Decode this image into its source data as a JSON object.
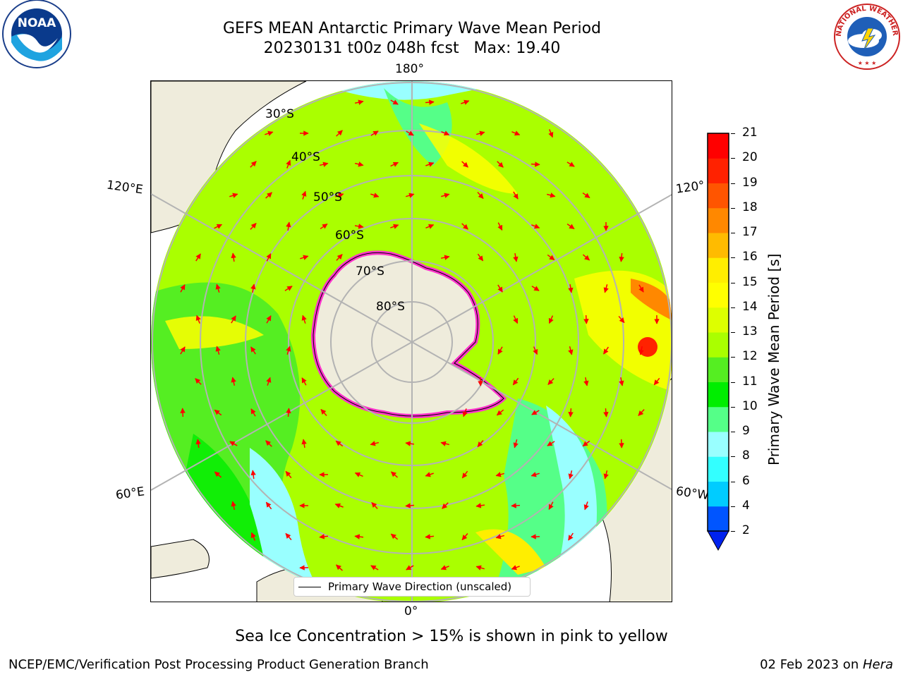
{
  "header": {
    "title_line1": "GEFS MEAN Antarctic Primary Wave Mean Period",
    "title_line2": "20230131 t00z 048h fcst   Max: 19.40"
  },
  "logos": {
    "noaa_text": "NOAA",
    "nws_text": "NATIONAL WEATHER SERVICE"
  },
  "map": {
    "longitude_labels": [
      "180°",
      "120°E",
      "120°",
      "60°E",
      "60°W",
      "0°"
    ],
    "latitude_labels": [
      "30°S",
      "40°S",
      "50°S",
      "60°S",
      "70°S",
      "80°S"
    ],
    "legend_label": "Primary Wave Direction (unscaled)",
    "arrow_color": "#ff0000",
    "land_color": "#efecdc",
    "sea_ice_color": "#ff33cc"
  },
  "colorbar": {
    "label": "Primary Wave Mean Period [s]",
    "ticks": [
      "2",
      "4",
      "6",
      "8",
      "9",
      "10",
      "11",
      "12",
      "13",
      "14",
      "15",
      "16",
      "17",
      "18",
      "19",
      "20",
      "21"
    ],
    "colors": [
      "#0055ff",
      "#00ccff",
      "#33ffff",
      "#99ffff",
      "#55ff88",
      "#00ee00",
      "#55ee22",
      "#aaff00",
      "#ddff00",
      "#ffff00",
      "#ffee00",
      "#ffbb00",
      "#ff8800",
      "#ff5500",
      "#ff2200",
      "#ff0000"
    ],
    "extend_color": "#0022ee"
  },
  "notes": {
    "sea_ice": "Sea Ice Concentration > 15% is shown in pink to yellow"
  },
  "footer": {
    "left": "NCEP/EMC/Verification Post Processing Product Generation Branch",
    "right_prefix": "02 Feb 2023 on ",
    "right_host": "Hera"
  }
}
